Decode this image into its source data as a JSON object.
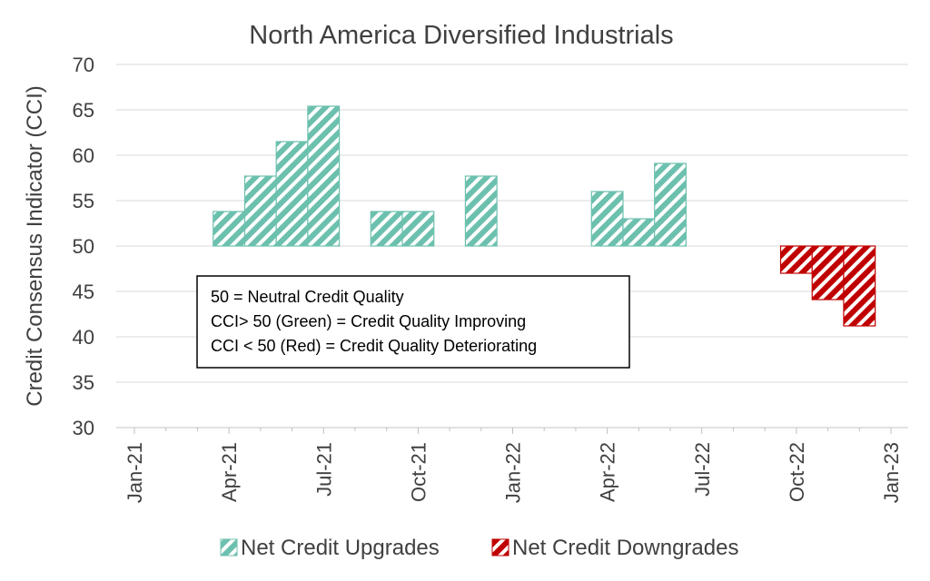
{
  "chart_data": {
    "type": "bar",
    "title": "North America Diversified Industrials",
    "xlabel": "",
    "ylabel": "Credit Consensus Indicator (CCI)",
    "ylim": [
      30,
      70
    ],
    "y_ticks": [
      30,
      35,
      40,
      45,
      50,
      55,
      60,
      65,
      70
    ],
    "baseline": 50,
    "x_ticks": [
      "Jan-21",
      "Apr-21",
      "Jul-21",
      "Oct-21",
      "Jan-22",
      "Apr-22",
      "Jul-22",
      "Oct-22",
      "Jan-23"
    ],
    "grid": true,
    "legend_position": "bottom",
    "series": [
      {
        "name": "Net Credit Upgrades",
        "color": "#6CC0AE",
        "points": [
          {
            "month_index": 3,
            "value": 53.8
          },
          {
            "month_index": 4,
            "value": 57.7
          },
          {
            "month_index": 5,
            "value": 61.5
          },
          {
            "month_index": 6,
            "value": 65.4
          },
          {
            "month_index": 8,
            "value": 53.8
          },
          {
            "month_index": 9,
            "value": 53.8
          },
          {
            "month_index": 11,
            "value": 57.7
          },
          {
            "month_index": 15,
            "value": 56.0
          },
          {
            "month_index": 16,
            "value": 53.0
          },
          {
            "month_index": 17,
            "value": 59.1
          }
        ]
      },
      {
        "name": "Net Credit Downgrades",
        "color": "#C00000",
        "points": [
          {
            "month_index": 21,
            "value": 47.0
          },
          {
            "month_index": 22,
            "value": 44.1
          },
          {
            "month_index": 23,
            "value": 41.2
          }
        ]
      }
    ],
    "annotation": [
      "50 = Neutral Credit Quality",
      "CCI> 50 (Green) = Credit Quality Improving",
      "CCI < 50 (Red) = Credit Quality Deteriorating"
    ]
  }
}
